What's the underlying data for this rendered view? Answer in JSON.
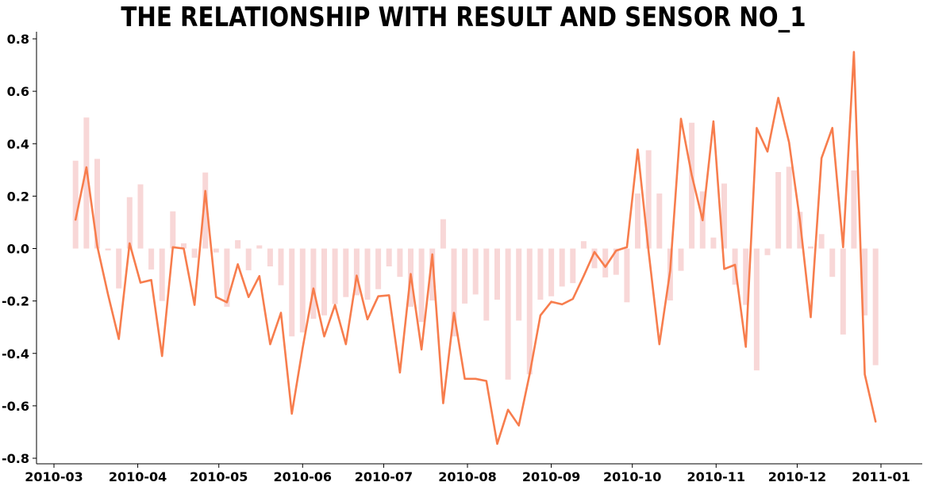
{
  "chart_data": {
    "type": "bar+line",
    "title": "THE RELATIONSHIP WITH RESULT AND SENSOR NO_1",
    "xlabel": "",
    "ylabel": "",
    "ylim": [
      -0.8,
      0.8
    ],
    "yticks": [
      "0.8",
      "0.6",
      "0.4",
      "0.2",
      "0.0",
      "-0.2",
      "-0.4",
      "-0.6",
      "-0.8"
    ],
    "ytick_values": [
      0.8,
      0.6,
      0.4,
      0.2,
      0.0,
      -0.2,
      -0.4,
      -0.6,
      -0.8
    ],
    "xticks": [
      "2010-03",
      "2010-04",
      "2010-05",
      "2010-06",
      "2010-07",
      "2010-08",
      "2010-09",
      "2010-10",
      "2010-11",
      "2010-12",
      "2011-01"
    ],
    "xtick_dates": [
      "2010-03-01",
      "2010-04-01",
      "2010-05-01",
      "2010-06-01",
      "2010-07-01",
      "2010-08-01",
      "2010-09-01",
      "2010-10-01",
      "2010-11-01",
      "2010-12-01",
      "2011-01-01"
    ],
    "xlim": [
      "2010-02-21",
      "2011-01-17"
    ],
    "grid": false,
    "bar_color": "#f8d7d7",
    "line_color": "#f77d4d",
    "series": [
      {
        "type": "bar",
        "dates": [
          "2010-03-09",
          "2010-03-13",
          "2010-03-17",
          "2010-03-21",
          "2010-03-25",
          "2010-03-29",
          "2010-04-02",
          "2010-04-06",
          "2010-04-10",
          "2010-04-14",
          "2010-04-18",
          "2010-04-22",
          "2010-04-26",
          "2010-04-30",
          "2010-05-04",
          "2010-05-08",
          "2010-05-12",
          "2010-05-16",
          "2010-05-20",
          "2010-05-24",
          "2010-05-28",
          "2010-06-01",
          "2010-06-05",
          "2010-06-09",
          "2010-06-13",
          "2010-06-17",
          "2010-06-21",
          "2010-06-25",
          "2010-06-29",
          "2010-07-03",
          "2010-07-07",
          "2010-07-11",
          "2010-07-15",
          "2010-07-19",
          "2010-07-23",
          "2010-07-27",
          "2010-07-31",
          "2010-08-04",
          "2010-08-08",
          "2010-08-12",
          "2010-08-16",
          "2010-08-20",
          "2010-08-24",
          "2010-08-28",
          "2010-09-01",
          "2010-09-05",
          "2010-09-09",
          "2010-09-13",
          "2010-09-17",
          "2010-09-21",
          "2010-09-25",
          "2010-09-29",
          "2010-10-03",
          "2010-10-07",
          "2010-10-11",
          "2010-10-15",
          "2010-10-19",
          "2010-10-23",
          "2010-10-27",
          "2010-10-31",
          "2010-11-04",
          "2010-11-08",
          "2010-11-12",
          "2010-11-16",
          "2010-11-20",
          "2010-11-24",
          "2010-11-28",
          "2010-12-02",
          "2010-12-06",
          "2010-12-10",
          "2010-12-14",
          "2010-12-18",
          "2010-12-22",
          "2010-12-26",
          "2010-12-30"
        ],
        "values": [
          0.335,
          0.5,
          0.342,
          -0.007,
          -0.152,
          0.196,
          0.245,
          -0.08,
          -0.2,
          0.142,
          0.02,
          -0.035,
          0.29,
          -0.015,
          -0.222,
          0.032,
          -0.083,
          0.012,
          -0.068,
          -0.14,
          -0.335,
          -0.32,
          -0.268,
          -0.255,
          -0.212,
          -0.185,
          -0.178,
          -0.195,
          -0.155,
          -0.068,
          -0.108,
          -0.222,
          -0.28,
          -0.198,
          0.112,
          -0.335,
          -0.21,
          -0.175,
          -0.275,
          -0.195,
          -0.5,
          -0.275,
          -0.48,
          -0.195,
          -0.182,
          -0.145,
          -0.132,
          0.028,
          -0.075,
          -0.11,
          -0.1,
          -0.205,
          0.21,
          0.375,
          0.21,
          -0.198,
          -0.085,
          0.48,
          0.218,
          0.042,
          0.248,
          -0.138,
          -0.215,
          -0.465,
          -0.025,
          0.292,
          0.312,
          0.14,
          0.008,
          0.055,
          -0.108,
          -0.328,
          0.298,
          -0.255,
          -0.445
        ]
      },
      {
        "type": "line",
        "dates": [
          "2010-03-09",
          "2010-03-13",
          "2010-03-17",
          "2010-03-21",
          "2010-03-25",
          "2010-03-29",
          "2010-04-02",
          "2010-04-06",
          "2010-04-10",
          "2010-04-14",
          "2010-04-18",
          "2010-04-22",
          "2010-04-26",
          "2010-04-30",
          "2010-05-04",
          "2010-05-08",
          "2010-05-12",
          "2010-05-16",
          "2010-05-20",
          "2010-05-24",
          "2010-05-28",
          "2010-06-01",
          "2010-06-05",
          "2010-06-09",
          "2010-06-13",
          "2010-06-17",
          "2010-06-21",
          "2010-06-25",
          "2010-06-29",
          "2010-07-03",
          "2010-07-07",
          "2010-07-11",
          "2010-07-15",
          "2010-07-19",
          "2010-07-23",
          "2010-07-27",
          "2010-07-31",
          "2010-08-04",
          "2010-08-08",
          "2010-08-12",
          "2010-08-16",
          "2010-08-20",
          "2010-08-24",
          "2010-08-28",
          "2010-09-01",
          "2010-09-05",
          "2010-09-09",
          "2010-09-13",
          "2010-09-17",
          "2010-09-21",
          "2010-09-25",
          "2010-09-29",
          "2010-10-03",
          "2010-10-07",
          "2010-10-11",
          "2010-10-15",
          "2010-10-19",
          "2010-10-23",
          "2010-10-27",
          "2010-10-31",
          "2010-11-04",
          "2010-11-08",
          "2010-11-12",
          "2010-11-16",
          "2010-11-20",
          "2010-11-24",
          "2010-11-28",
          "2010-12-02",
          "2010-12-06",
          "2010-12-10",
          "2010-12-14",
          "2010-12-18",
          "2010-12-22",
          "2010-12-26",
          "2010-12-30"
        ],
        "values": [
          0.11,
          0.31,
          0.01,
          -0.175,
          -0.345,
          0.02,
          -0.13,
          -0.12,
          -0.41,
          0.005,
          0.0,
          -0.215,
          0.22,
          -0.185,
          -0.205,
          -0.06,
          -0.185,
          -0.105,
          -0.365,
          -0.245,
          -0.63,
          -0.38,
          -0.152,
          -0.335,
          -0.215,
          -0.365,
          -0.103,
          -0.27,
          -0.182,
          -0.178,
          -0.473,
          -0.097,
          -0.385,
          -0.022,
          -0.59,
          -0.245,
          -0.497,
          -0.497,
          -0.505,
          -0.745,
          -0.615,
          -0.675,
          -0.48,
          -0.255,
          -0.203,
          -0.213,
          -0.192,
          -0.105,
          -0.013,
          -0.07,
          -0.008,
          0.005,
          0.378,
          -0.01,
          -0.365,
          -0.085,
          0.495,
          0.28,
          0.108,
          0.485,
          -0.078,
          -0.062,
          -0.375,
          0.46,
          0.37,
          0.575,
          0.405,
          0.11,
          -0.262,
          0.345,
          0.46,
          0.005,
          0.75,
          -0.48,
          -0.66
        ]
      }
    ]
  }
}
